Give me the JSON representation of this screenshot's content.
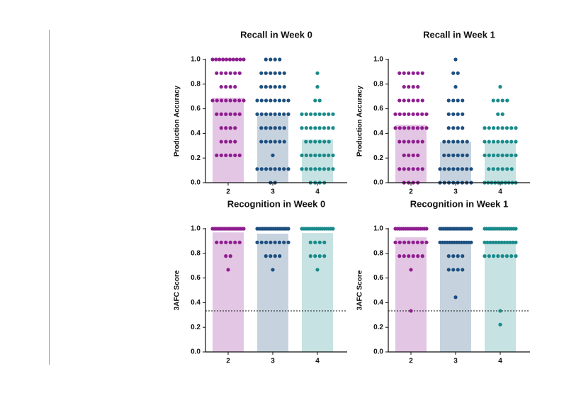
{
  "chart_data": [
    {
      "type": "bar_dot",
      "title": "Recall in Week 0",
      "ylabel": "Production Accuracy",
      "categories": [
        "2",
        "3",
        "4"
      ],
      "values": [
        0.69,
        0.545,
        0.35
      ],
      "colors": [
        "#8e1d8f",
        "#1d4f7f",
        "#1a8a8a"
      ],
      "ylim": [
        0,
        1
      ],
      "yticks": [
        {
          "value": 0,
          "label": "0.0"
        },
        0.2,
        0.4,
        0.6,
        0.8,
        {
          "value": 1,
          "label": "1.0"
        }
      ],
      "points": [
        [
          1,
          1,
          1,
          1,
          1,
          1,
          1,
          1,
          1,
          1,
          0.889,
          0.889,
          0.889,
          0.889,
          0.889,
          0.889,
          0.778,
          0.778,
          0.778,
          0.778,
          0.667,
          0.667,
          0.667,
          0.667,
          0.667,
          0.667,
          0.667,
          0.667,
          0.556,
          0.556,
          0.556,
          0.556,
          0.556,
          0.556,
          0.444,
          0.444,
          0.444,
          0.444,
          0.333,
          0.333,
          0.333,
          0.333,
          0.222,
          0.222,
          0.222,
          0.222,
          0.222,
          0.222
        ],
        [
          1,
          1,
          1,
          1,
          0.889,
          0.889,
          0.889,
          0.889,
          0.889,
          0.889,
          0.778,
          0.778,
          0.778,
          0.778,
          0.778,
          0.778,
          0.667,
          0.667,
          0.667,
          0.667,
          0.667,
          0.667,
          0.667,
          0.667,
          0.556,
          0.556,
          0.556,
          0.556,
          0.556,
          0.556,
          0.556,
          0.556,
          0.444,
          0.444,
          0.444,
          0.444,
          0.444,
          0.444,
          0.333,
          0.333,
          0.333,
          0.333,
          0.333,
          0.333,
          0.222,
          0.111,
          0.111,
          0.111,
          0.111,
          0.111,
          0.111,
          0.111,
          0.111,
          0,
          0
        ],
        [
          0.889,
          0.778,
          0.667,
          0.667,
          0.556,
          0.556,
          0.556,
          0.556,
          0.556,
          0.556,
          0.556,
          0.556,
          0.444,
          0.444,
          0.444,
          0.444,
          0.444,
          0.444,
          0.444,
          0.444,
          0.333,
          0.333,
          0.333,
          0.333,
          0.333,
          0.333,
          0.222,
          0.222,
          0.222,
          0.222,
          0.222,
          0.222,
          0.222,
          0.222,
          0.111,
          0.111,
          0.111,
          0.111,
          0.111,
          0.111,
          0.111,
          0.111,
          0,
          0,
          0,
          0
        ]
      ]
    },
    {
      "type": "bar_dot",
      "title": "Recall in Week 1",
      "ylabel": "Production Accuracy",
      "categories": [
        "2",
        "3",
        "4"
      ],
      "values": [
        0.47,
        0.33,
        0.33
      ],
      "colors": [
        "#8e1d8f",
        "#1d4f7f",
        "#1a8a8a"
      ],
      "ylim": [
        0,
        1
      ],
      "yticks": [
        {
          "value": 0,
          "label": "0.0"
        },
        0.2,
        0.4,
        0.6,
        0.8,
        {
          "value": 1,
          "label": "1.0"
        }
      ],
      "points": [
        [
          0.889,
          0.889,
          0.889,
          0.889,
          0.889,
          0.889,
          0.778,
          0.778,
          0.778,
          0.778,
          0.667,
          0.667,
          0.667,
          0.667,
          0.667,
          0.667,
          0.556,
          0.556,
          0.556,
          0.556,
          0.556,
          0.556,
          0.556,
          0.556,
          0.444,
          0.444,
          0.444,
          0.444,
          0.444,
          0.444,
          0.444,
          0.444,
          0.333,
          0.333,
          0.333,
          0.333,
          0.333,
          0.333,
          0.222,
          0.222,
          0.222,
          0.222,
          0.111,
          0.111,
          0.111,
          0.111,
          0.111,
          0.111,
          0,
          0,
          0,
          0
        ],
        [
          1,
          0.889,
          0.889,
          0.778,
          0.667,
          0.667,
          0.667,
          0.667,
          0.556,
          0.556,
          0.556,
          0.556,
          0.444,
          0.444,
          0.444,
          0.444,
          0.333,
          0.333,
          0.333,
          0.333,
          0.333,
          0.333,
          0.222,
          0.222,
          0.222,
          0.222,
          0.222,
          0.222,
          0.111,
          0.111,
          0.111,
          0.111,
          0.111,
          0.111,
          0.111,
          0.111,
          0,
          0,
          0,
          0,
          0,
          0,
          0,
          0
        ],
        [
          0.778,
          0.667,
          0.667,
          0.667,
          0.667,
          0.556,
          0.556,
          0.444,
          0.444,
          0.444,
          0.444,
          0.444,
          0.444,
          0.444,
          0.444,
          0.333,
          0.333,
          0.333,
          0.333,
          0.333,
          0.333,
          0.333,
          0.333,
          0.222,
          0.222,
          0.222,
          0.222,
          0.222,
          0.222,
          0.222,
          0.222,
          0.111,
          0.111,
          0.111,
          0.111,
          0.111,
          0.111,
          0,
          0,
          0,
          0,
          0,
          0,
          0,
          0,
          0,
          0
        ]
      ]
    },
    {
      "type": "bar_dot",
      "title": "Recognition in Week 0",
      "ylabel": "3AFC Score",
      "categories": [
        "2",
        "3",
        "4"
      ],
      "values": [
        0.97,
        0.96,
        0.965
      ],
      "colors": [
        "#8e1d8f",
        "#1d4f7f",
        "#1a8a8a"
      ],
      "ylim": [
        0,
        1
      ],
      "yticks": [
        {
          "value": 0,
          "label": "0.0"
        },
        0.2,
        0.4,
        0.6,
        0.8,
        {
          "value": 1,
          "label": "1.0"
        }
      ],
      "reference_line": 0.333,
      "points": [
        [
          1,
          1,
          1,
          1,
          1,
          1,
          1,
          1,
          1,
          1,
          1,
          1,
          1,
          1,
          1,
          1,
          1,
          1,
          1,
          1,
          0.889,
          0.889,
          0.889,
          0.889,
          0.889,
          0.889,
          0.778,
          0.778,
          0.667
        ],
        [
          1,
          1,
          1,
          1,
          1,
          1,
          1,
          1,
          1,
          1,
          1,
          1,
          1,
          1,
          1,
          1,
          1,
          1,
          0.889,
          0.889,
          0.889,
          0.889,
          0.889,
          0.889,
          0.889,
          0.889,
          0.778,
          0.778,
          0.778,
          0.778,
          0.667
        ],
        [
          1,
          1,
          1,
          1,
          1,
          1,
          1,
          1,
          1,
          1,
          1,
          1,
          1,
          1,
          1,
          1,
          0.889,
          0.889,
          0.889,
          0.889,
          0.778,
          0.778,
          0.778,
          0.778,
          0.667
        ]
      ]
    },
    {
      "type": "bar_dot",
      "title": "Recognition in Week 1",
      "ylabel": "3AFC Score",
      "categories": [
        "2",
        "3",
        "4"
      ],
      "values": [
        0.93,
        0.9,
        0.9
      ],
      "colors": [
        "#8e1d8f",
        "#1d4f7f",
        "#1a8a8a"
      ],
      "ylim": [
        0,
        1
      ],
      "yticks": [
        {
          "value": 0,
          "label": "0.0"
        },
        0.2,
        0.4,
        0.6,
        0.8,
        {
          "value": 1,
          "label": "1.0"
        }
      ],
      "reference_line": 0.333,
      "points": [
        [
          1,
          1,
          1,
          1,
          1,
          1,
          1,
          1,
          1,
          1,
          1,
          1,
          1,
          1,
          1,
          1,
          0.889,
          0.889,
          0.889,
          0.889,
          0.889,
          0.889,
          0.889,
          0.889,
          0.778,
          0.778,
          0.778,
          0.778,
          0.778,
          0.778,
          0.667,
          0.333
        ],
        [
          1,
          1,
          1,
          1,
          1,
          1,
          1,
          1,
          1,
          1,
          1,
          1,
          1,
          1,
          1,
          1,
          1,
          1,
          0.889,
          0.889,
          0.889,
          0.889,
          0.889,
          0.889,
          0.889,
          0.889,
          0.889,
          0.889,
          0.889,
          0.889,
          0.889,
          0.889,
          0.778,
          0.778,
          0.778,
          0.778,
          0.667,
          0.667,
          0.667,
          0.667,
          0.444
        ],
        [
          1,
          1,
          1,
          1,
          1,
          1,
          1,
          1,
          1,
          1,
          1,
          1,
          1,
          1,
          1,
          1,
          0.889,
          0.889,
          0.889,
          0.889,
          0.889,
          0.889,
          0.889,
          0.889,
          0.889,
          0.889,
          0.889,
          0.889,
          0.778,
          0.778,
          0.778,
          0.778,
          0.778,
          0.778,
          0.778,
          0.778,
          0.333,
          0.222
        ]
      ]
    }
  ]
}
